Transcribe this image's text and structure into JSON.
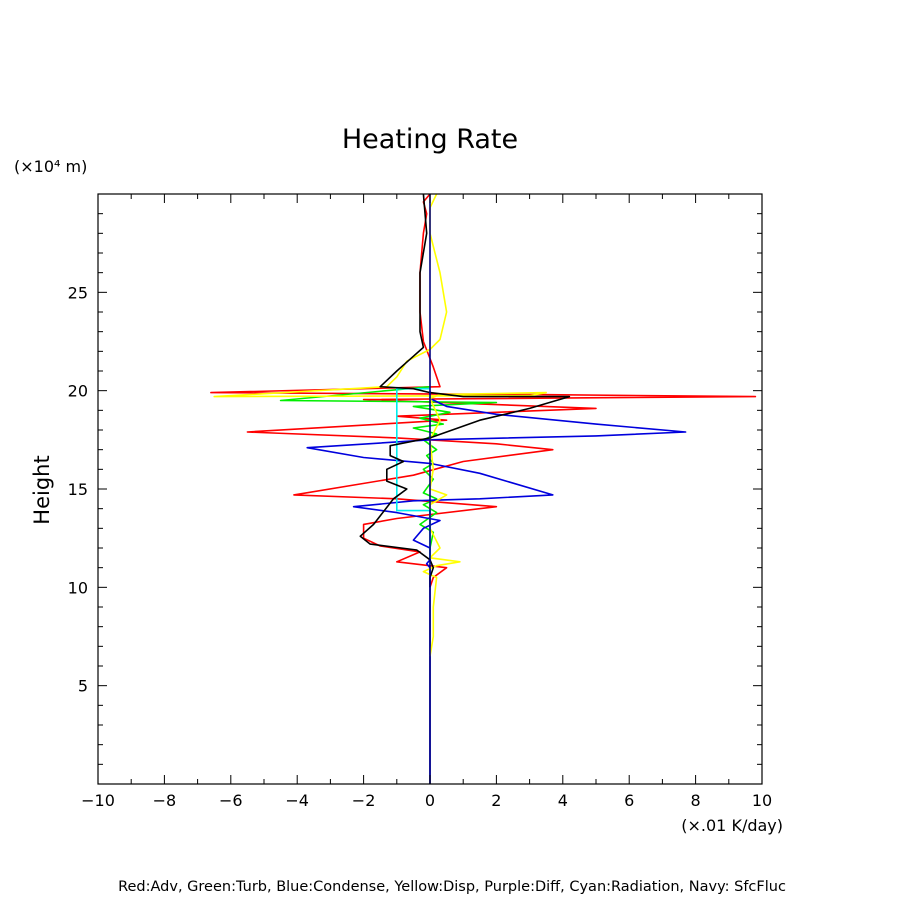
{
  "chart_data": {
    "type": "line",
    "title": "Heating Rate",
    "ylabel": "Height",
    "yunit": "(×10⁴ m)",
    "xunit": "(×.01 K/day)",
    "caption": "Red:Adv, Green:Turb, Blue:Condense, Yellow:Disp, Purple:Diff, Cyan:Radiation, Navy: SfcFluc",
    "xlim": [
      -10,
      10
    ],
    "ylim": [
      0,
      30
    ],
    "xticks": [
      -10,
      -8,
      -6,
      -4,
      -2,
      0,
      2,
      4,
      6,
      8,
      10
    ],
    "xtick_labels": [
      "−10",
      "−8",
      "−6",
      "−4",
      "−2",
      "0",
      "2",
      "4",
      "6",
      "8",
      "10"
    ],
    "yticks": [
      5,
      10,
      15,
      20,
      25
    ],
    "ytick_labels": [
      "5",
      "10",
      "15",
      "20",
      "25"
    ],
    "grid": false,
    "series": [
      {
        "color": "#ff0000",
        "points": [
          [
            0,
            30
          ],
          [
            -0.2,
            29.6
          ],
          [
            -0.1,
            29
          ],
          [
            -0.2,
            28
          ],
          [
            -0.3,
            26
          ],
          [
            -0.3,
            24
          ],
          [
            -0.2,
            22.5
          ],
          [
            0.1,
            21.2
          ],
          [
            0.3,
            20.2
          ],
          [
            -6.6,
            19.9
          ],
          [
            3.2,
            19.8
          ],
          [
            9.8,
            19.7
          ],
          [
            -2,
            19.55
          ],
          [
            5,
            19.1
          ],
          [
            -1,
            18.7
          ],
          [
            0.5,
            18.5
          ],
          [
            -5.5,
            17.9
          ],
          [
            -1,
            17.6
          ],
          [
            2,
            17.3
          ],
          [
            3.7,
            17
          ],
          [
            1,
            16.4
          ],
          [
            -0.5,
            15.7
          ],
          [
            -4.1,
            14.7
          ],
          [
            -1,
            14.5
          ],
          [
            2,
            14.1
          ],
          [
            -1,
            13.5
          ],
          [
            -2,
            13.2
          ],
          [
            -2,
            12.5
          ],
          [
            -1.5,
            12.1
          ],
          [
            -0.3,
            11.8
          ],
          [
            -1,
            11.3
          ],
          [
            0.5,
            11
          ],
          [
            0.1,
            10.5
          ],
          [
            0,
            10
          ]
        ]
      },
      {
        "color": "#00ee00",
        "points": [
          [
            0,
            20.2
          ],
          [
            -4.5,
            19.5
          ],
          [
            -1,
            19.45
          ],
          [
            2,
            19.4
          ],
          [
            -0.5,
            19.2
          ],
          [
            0.6,
            18.9
          ],
          [
            -0.3,
            18.6
          ],
          [
            0.4,
            18.3
          ],
          [
            -0.5,
            18.1
          ],
          [
            0.2,
            17.8
          ],
          [
            -0.2,
            17.5
          ],
          [
            0.2,
            17
          ],
          [
            -0.1,
            16.7
          ],
          [
            0.1,
            16.3
          ],
          [
            -0.2,
            16
          ],
          [
            0.1,
            15.5
          ],
          [
            -0.2,
            14.8
          ],
          [
            0.2,
            14.5
          ],
          [
            -0.2,
            14.2
          ],
          [
            0.2,
            13.8
          ],
          [
            -0.3,
            13.2
          ],
          [
            0.1,
            12.8
          ],
          [
            0,
            12
          ]
        ]
      },
      {
        "color": "#0000dd",
        "points": [
          [
            0,
            20
          ],
          [
            0,
            19.6
          ],
          [
            0.5,
            19.2
          ],
          [
            2,
            18.8
          ],
          [
            5,
            18.3
          ],
          [
            7.7,
            17.9
          ],
          [
            5,
            17.7
          ],
          [
            0,
            17.5
          ],
          [
            -3.7,
            17.1
          ],
          [
            -2,
            16.6
          ],
          [
            0,
            16.3
          ],
          [
            1.5,
            15.8
          ],
          [
            3.7,
            14.7
          ],
          [
            1.5,
            14.5
          ],
          [
            -0.5,
            14.4
          ],
          [
            -2.3,
            14.1
          ],
          [
            -1,
            13.8
          ],
          [
            0.3,
            13.4
          ],
          [
            -0.2,
            13
          ],
          [
            -0.5,
            12.4
          ],
          [
            0,
            12
          ],
          [
            0,
            11.4
          ],
          [
            -0.1,
            11.2
          ],
          [
            0,
            11
          ],
          [
            0,
            0
          ]
        ]
      },
      {
        "color": "#ffff00",
        "points": [
          [
            0.2,
            30
          ],
          [
            0,
            29.3
          ],
          [
            0,
            28
          ],
          [
            0.3,
            26
          ],
          [
            0.5,
            24
          ],
          [
            0.3,
            22.6
          ],
          [
            0,
            22.1
          ],
          [
            -0.7,
            21.5
          ],
          [
            -1,
            20.7
          ],
          [
            -1.3,
            20.2
          ],
          [
            -6.5,
            19.7
          ],
          [
            3,
            19.75
          ],
          [
            3.5,
            19.9
          ],
          [
            0.3,
            19.8
          ],
          [
            0,
            19.6
          ],
          [
            0.3,
            18.5
          ],
          [
            0,
            17.5
          ],
          [
            0.1,
            16
          ],
          [
            0,
            15
          ],
          [
            0.5,
            14.7
          ],
          [
            0,
            14.2
          ],
          [
            0,
            13
          ],
          [
            0.3,
            12
          ],
          [
            0,
            11.5
          ],
          [
            0.9,
            11.3
          ],
          [
            0.2,
            11.1
          ],
          [
            -0.2,
            10.8
          ],
          [
            0.2,
            10.5
          ],
          [
            0.1,
            9
          ],
          [
            0.1,
            7.5
          ],
          [
            0,
            6.5
          ]
        ]
      },
      {
        "color": "#00eeee",
        "points": [
          [
            0,
            20.1
          ],
          [
            -1,
            20.1
          ],
          [
            -1,
            13.9
          ],
          [
            0,
            13.9
          ],
          [
            0,
            11.5
          ]
        ]
      },
      {
        "color": "#000000",
        "points": [
          [
            -0.2,
            30
          ],
          [
            -0.1,
            28
          ],
          [
            -0.3,
            26
          ],
          [
            -0.3,
            24
          ],
          [
            -0.3,
            23
          ],
          [
            -0.2,
            22.2
          ],
          [
            -0.6,
            21.6
          ],
          [
            -1,
            21
          ],
          [
            -1.5,
            20.2
          ],
          [
            -0.5,
            20.1
          ],
          [
            0,
            19.9
          ],
          [
            1,
            19.7
          ],
          [
            4.2,
            19.7
          ],
          [
            3,
            19.1
          ],
          [
            1.5,
            18.5
          ],
          [
            0,
            17.6
          ],
          [
            -1.2,
            17.2
          ],
          [
            -1.2,
            16.7
          ],
          [
            -0.8,
            16.4
          ],
          [
            -1.3,
            16
          ],
          [
            -1.3,
            15.4
          ],
          [
            -0.7,
            15
          ],
          [
            -1.1,
            14.5
          ],
          [
            -1.7,
            13.2
          ],
          [
            -2.1,
            12.6
          ],
          [
            -1.8,
            12.2
          ],
          [
            -0.4,
            11.9
          ],
          [
            0,
            11.4
          ],
          [
            0.1,
            11
          ],
          [
            0,
            10.5
          ],
          [
            0,
            10
          ]
        ]
      },
      {
        "color": "#000080",
        "points": [
          [
            0,
            30
          ],
          [
            0,
            0
          ]
        ]
      }
    ]
  }
}
